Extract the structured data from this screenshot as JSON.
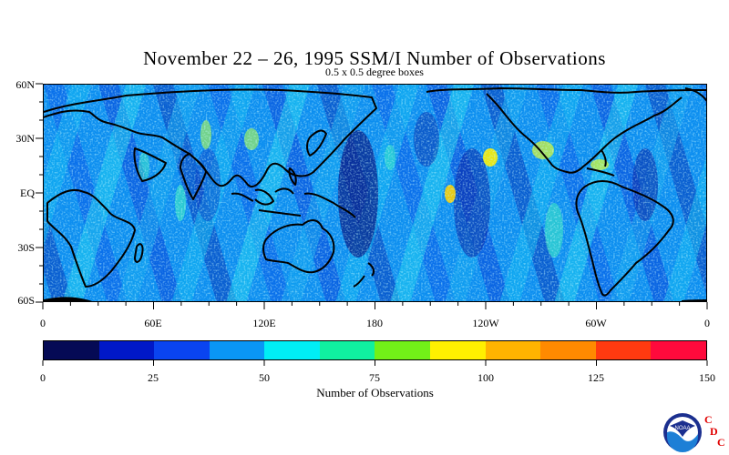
{
  "title": "November 22 – 26, 1995 SSM/I Number of Observations",
  "subtitle": "0.5 x 0.5 degree boxes",
  "map": {
    "lat_labels": [
      "60N",
      "30N",
      "EQ",
      "30S",
      "60S"
    ],
    "lon_labels": [
      "0",
      "60E",
      "120E",
      "180",
      "120W",
      "60W",
      "0"
    ]
  },
  "colorbar": {
    "title": "Number of Observations",
    "tick_labels": [
      "0",
      "25",
      "50",
      "75",
      "100",
      "125",
      "150"
    ],
    "colors": [
      "#050a55",
      "#0018c8",
      "#0a44f0",
      "#0a96f5",
      "#00eef5",
      "#10f0a0",
      "#72f018",
      "#fff000",
      "#ffb400",
      "#ff8a00",
      "#ff3a10",
      "#ff0a3c"
    ]
  },
  "logo": {
    "text": "NOAA",
    "letters": [
      "C",
      "D",
      "C"
    ]
  }
}
